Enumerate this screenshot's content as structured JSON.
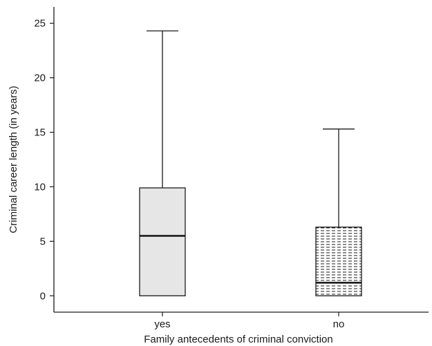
{
  "chart_data": {
    "type": "box",
    "title": "",
    "xlabel": "Family antecedents of criminal conviction",
    "ylabel": "Criminal career length (in years)",
    "ylim": [
      -1.5,
      26.5
    ],
    "yticks": [
      0,
      5,
      10,
      15,
      20,
      25
    ],
    "ytick_labels": [
      "0",
      "5",
      "10",
      "15",
      "20",
      "25"
    ],
    "grid": false,
    "legend": "none",
    "categories": [
      "yes",
      "no"
    ],
    "boxes": [
      {
        "category": "yes",
        "min": 0,
        "q1": 0,
        "median": 5.5,
        "q3": 9.9,
        "max": 24.3,
        "fill": "#e6e6e6",
        "pattern": "solid"
      },
      {
        "category": "no",
        "min": 0,
        "q1": 0,
        "median": 1.2,
        "q3": 6.3,
        "max": 15.3,
        "fill": "#ffffff",
        "pattern": "dashed-horizontal"
      }
    ]
  }
}
